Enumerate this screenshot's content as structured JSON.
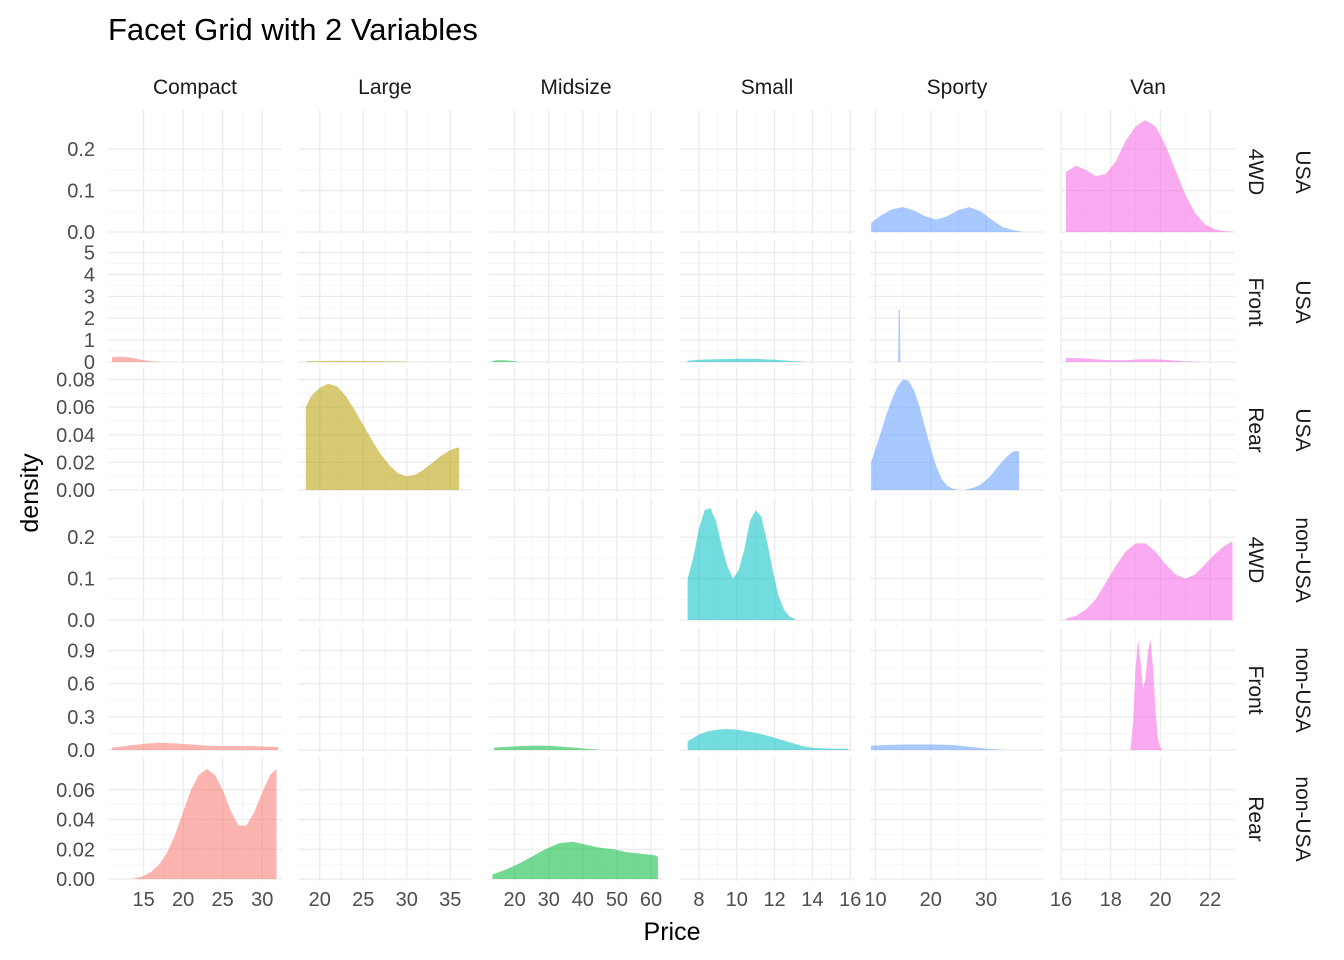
{
  "chart_data": {
    "type": "area",
    "title": "Facet Grid with 2 Variables",
    "xlabel": "Price",
    "ylabel": "density",
    "columns": [
      "Compact",
      "Large",
      "Midsize",
      "Small",
      "Sporty",
      "Van"
    ],
    "rows": [
      {
        "origin": "USA",
        "drive": "4WD"
      },
      {
        "origin": "USA",
        "drive": "Front"
      },
      {
        "origin": "USA",
        "drive": "Rear"
      },
      {
        "origin": "non-USA",
        "drive": "4WD"
      },
      {
        "origin": "non-USA",
        "drive": "Front"
      },
      {
        "origin": "non-USA",
        "drive": "Rear"
      }
    ],
    "colors": {
      "Compact": "#F8766D",
      "Large": "#B79F00",
      "Midsize": "#00BA38",
      "Small": "#00BFC4",
      "Sporty": "#619CFF",
      "Van": "#F564E3"
    },
    "x_axes": [
      {
        "domain": [
          10.5,
          32.5
        ],
        "ticks": [
          15,
          20,
          25,
          30
        ],
        "tick_labels": [
          "15",
          "20",
          "25",
          "30"
        ]
      },
      {
        "domain": [
          17.5,
          37.5
        ],
        "ticks": [
          20,
          25,
          30,
          35
        ],
        "tick_labels": [
          "20",
          "25",
          "30",
          "35"
        ]
      },
      {
        "domain": [
          12.5,
          63.5
        ],
        "ticks": [
          20,
          30,
          40,
          50,
          60
        ],
        "tick_labels": [
          "20",
          "30",
          "40",
          "50",
          "60"
        ]
      },
      {
        "domain": [
          7.0,
          16.2
        ],
        "ticks": [
          8,
          10,
          12,
          14,
          16
        ],
        "tick_labels": [
          "8",
          "10",
          "12",
          "14",
          "16"
        ]
      },
      {
        "domain": [
          9.0,
          40.5
        ],
        "ticks": [
          10,
          20,
          30
        ],
        "tick_labels": [
          "10",
          "20",
          "30"
        ]
      },
      {
        "domain": [
          16.0,
          23.0
        ],
        "ticks": [
          16,
          18,
          20,
          22
        ],
        "tick_labels": [
          "16",
          "18",
          "20",
          "22"
        ]
      }
    ],
    "y_axes": [
      {
        "ylim": [
          0,
          0.28
        ],
        "ticks": [
          0,
          0.1,
          0.2
        ],
        "tick_labels": [
          "0.0",
          "0.1",
          "0.2"
        ]
      },
      {
        "ylim": [
          0,
          5.3
        ],
        "ticks": [
          0,
          1,
          2,
          3,
          4,
          5
        ],
        "tick_labels": [
          "0",
          "1",
          "2",
          "3",
          "4",
          "5"
        ]
      },
      {
        "ylim": [
          0,
          0.084
        ],
        "ticks": [
          0,
          0.02,
          0.04,
          0.06,
          0.08
        ],
        "tick_labels": [
          "0.00",
          "0.02",
          "0.04",
          "0.06",
          "0.08"
        ]
      },
      {
        "ylim": [
          0,
          0.28
        ],
        "ticks": [
          0,
          0.1,
          0.2
        ],
        "tick_labels": [
          "0.0",
          "0.1",
          "0.2"
        ]
      },
      {
        "ylim": [
          0,
          1.05
        ],
        "ticks": [
          0,
          0.3,
          0.6,
          0.9
        ],
        "tick_labels": [
          "0.0",
          "0.3",
          "0.6",
          "0.9"
        ]
      },
      {
        "ylim": [
          0,
          0.078
        ],
        "ticks": [
          0,
          0.02,
          0.04,
          0.06
        ],
        "tick_labels": [
          "0.00",
          "0.02",
          "0.04",
          "0.06"
        ]
      }
    ],
    "series": [
      {
        "row": 0,
        "col": 4,
        "x": [
          9.2,
          11,
          13,
          15,
          17,
          19,
          21,
          23,
          25,
          27,
          29,
          31,
          33,
          35,
          36.5
        ],
        "y": [
          0.022,
          0.04,
          0.055,
          0.06,
          0.052,
          0.038,
          0.03,
          0.038,
          0.053,
          0.06,
          0.05,
          0.03,
          0.012,
          0.004,
          0.001
        ]
      },
      {
        "row": 0,
        "col": 5,
        "x": [
          16.2,
          16.6,
          17.0,
          17.4,
          17.8,
          18.2,
          18.6,
          19.0,
          19.4,
          19.8,
          20.2,
          20.6,
          21.0,
          21.4,
          21.8,
          22.2,
          22.6,
          22.9
        ],
        "y": [
          0.145,
          0.16,
          0.15,
          0.135,
          0.14,
          0.17,
          0.22,
          0.255,
          0.27,
          0.255,
          0.21,
          0.15,
          0.09,
          0.045,
          0.018,
          0.006,
          0.002,
          0.001
        ]
      },
      {
        "row": 1,
        "col": 0,
        "x": [
          11,
          12,
          13,
          14,
          15,
          16,
          17
        ],
        "y": [
          0.22,
          0.24,
          0.22,
          0.16,
          0.08,
          0.03,
          0.01
        ]
      },
      {
        "row": 1,
        "col": 1,
        "x": [
          18.5,
          21,
          24,
          27,
          30
        ],
        "y": [
          0.03,
          0.05,
          0.05,
          0.04,
          0.02
        ]
      },
      {
        "row": 1,
        "col": 2,
        "x": [
          13.5,
          15,
          17,
          19,
          21
        ],
        "y": [
          0.05,
          0.08,
          0.08,
          0.05,
          0.02
        ]
      },
      {
        "row": 1,
        "col": 3,
        "x": [
          7.4,
          8,
          9,
          10,
          11,
          12,
          13,
          13.6
        ],
        "y": [
          0.06,
          0.1,
          0.13,
          0.15,
          0.14,
          0.1,
          0.04,
          0.01
        ]
      },
      {
        "row": 1,
        "col": 4,
        "x": [
          14.1,
          14.2,
          14.3,
          14.4,
          14.5
        ],
        "y": [
          0.0,
          2.4,
          2.4,
          2.4,
          0.0
        ]
      },
      {
        "row": 1,
        "col": 5,
        "x": [
          16.2,
          16.8,
          17.4,
          18.0,
          18.6,
          19.2,
          19.8,
          20.4,
          21.0,
          21.6
        ],
        "y": [
          0.18,
          0.18,
          0.13,
          0.08,
          0.08,
          0.13,
          0.13,
          0.08,
          0.03,
          0.01
        ]
      },
      {
        "row": 2,
        "col": 1,
        "x": [
          18.4,
          19,
          20,
          21,
          22,
          23,
          24,
          25,
          26,
          27,
          28,
          29,
          30,
          31,
          32,
          33,
          34,
          35,
          36
        ],
        "y": [
          0.06,
          0.068,
          0.074,
          0.077,
          0.075,
          0.068,
          0.058,
          0.047,
          0.036,
          0.026,
          0.018,
          0.012,
          0.01,
          0.011,
          0.015,
          0.02,
          0.025,
          0.029,
          0.031
        ]
      },
      {
        "row": 2,
        "col": 4,
        "x": [
          9.2,
          10,
          11,
          12,
          13,
          14,
          15,
          16,
          17,
          18,
          19,
          20,
          21,
          22,
          23,
          24,
          25,
          26,
          27,
          28,
          29,
          30,
          31,
          32,
          33,
          34,
          35,
          36
        ],
        "y": [
          0.02,
          0.03,
          0.042,
          0.055,
          0.066,
          0.075,
          0.08,
          0.079,
          0.072,
          0.06,
          0.045,
          0.03,
          0.017,
          0.008,
          0.003,
          0.001,
          0.0,
          0.0,
          0.001,
          0.002,
          0.004,
          0.007,
          0.011,
          0.016,
          0.021,
          0.025,
          0.028,
          0.028
        ]
      },
      {
        "row": 3,
        "col": 3,
        "x": [
          7.4,
          7.7,
          8.0,
          8.3,
          8.6,
          8.9,
          9.2,
          9.5,
          9.8,
          10.1,
          10.4,
          10.7,
          11.0,
          11.3,
          11.6,
          11.9,
          12.2,
          12.5,
          12.8,
          13.1
        ],
        "y": [
          0.1,
          0.15,
          0.22,
          0.265,
          0.27,
          0.24,
          0.18,
          0.13,
          0.1,
          0.12,
          0.17,
          0.24,
          0.265,
          0.25,
          0.19,
          0.12,
          0.06,
          0.025,
          0.008,
          0.002
        ]
      },
      {
        "row": 3,
        "col": 5,
        "x": [
          16.2,
          16.6,
          17.0,
          17.4,
          17.8,
          18.2,
          18.6,
          19.0,
          19.4,
          19.8,
          20.2,
          20.6,
          21.0,
          21.4,
          21.8,
          22.2,
          22.6,
          22.9
        ],
        "y": [
          0.003,
          0.01,
          0.025,
          0.05,
          0.09,
          0.13,
          0.165,
          0.185,
          0.185,
          0.165,
          0.135,
          0.11,
          0.1,
          0.11,
          0.135,
          0.16,
          0.18,
          0.19
        ]
      },
      {
        "row": 4,
        "col": 0,
        "x": [
          11,
          13,
          15,
          17,
          19,
          21,
          23,
          25,
          27,
          29,
          31,
          32
        ],
        "y": [
          0.02,
          0.04,
          0.055,
          0.065,
          0.06,
          0.05,
          0.04,
          0.035,
          0.035,
          0.035,
          0.03,
          0.028
        ]
      },
      {
        "row": 4,
        "col": 2,
        "x": [
          14,
          18,
          22,
          26,
          30,
          34,
          38,
          42,
          45
        ],
        "y": [
          0.02,
          0.03,
          0.035,
          0.04,
          0.038,
          0.03,
          0.02,
          0.008,
          0.002
        ]
      },
      {
        "row": 4,
        "col": 3,
        "x": [
          7.4,
          8,
          8.5,
          9,
          9.5,
          10,
          10.5,
          11,
          11.5,
          12,
          12.5,
          13,
          13.5,
          14,
          14.5,
          15,
          15.5,
          15.9
        ],
        "y": [
          0.08,
          0.14,
          0.17,
          0.185,
          0.19,
          0.185,
          0.17,
          0.155,
          0.135,
          0.11,
          0.085,
          0.06,
          0.035,
          0.02,
          0.015,
          0.012,
          0.012,
          0.012
        ]
      },
      {
        "row": 4,
        "col": 4,
        "x": [
          9.2,
          12,
          15,
          18,
          21,
          24,
          27,
          30,
          33
        ],
        "y": [
          0.04,
          0.045,
          0.05,
          0.05,
          0.05,
          0.045,
          0.03,
          0.012,
          0.003
        ]
      },
      {
        "row": 4,
        "col": 5,
        "x": [
          18.8,
          18.9,
          19.0,
          19.1,
          19.2,
          19.3,
          19.4,
          19.5,
          19.6,
          19.7,
          19.8,
          19.9,
          20.0,
          20.1
        ],
        "y": [
          0.02,
          0.25,
          0.75,
          1.0,
          0.8,
          0.55,
          0.65,
          0.9,
          1.0,
          0.75,
          0.35,
          0.1,
          0.02,
          0.0
        ]
      },
      {
        "row": 5,
        "col": 0,
        "x": [
          13.5,
          14,
          15,
          16,
          17,
          18,
          19,
          20,
          21,
          22,
          23,
          24,
          25,
          26,
          27,
          28,
          29,
          30,
          31,
          31.8
        ],
        "y": [
          0.0,
          0.0005,
          0.002,
          0.005,
          0.01,
          0.018,
          0.03,
          0.045,
          0.06,
          0.07,
          0.074,
          0.07,
          0.06,
          0.046,
          0.036,
          0.036,
          0.045,
          0.058,
          0.07,
          0.074
        ]
      },
      {
        "row": 5,
        "col": 2,
        "x": [
          13.5,
          17,
          21,
          25,
          29,
          33,
          37,
          41,
          45,
          49,
          53,
          57,
          61,
          62
        ],
        "y": [
          0.003,
          0.006,
          0.01,
          0.015,
          0.02,
          0.024,
          0.025,
          0.023,
          0.021,
          0.02,
          0.018,
          0.017,
          0.016,
          0.015
        ]
      }
    ]
  }
}
